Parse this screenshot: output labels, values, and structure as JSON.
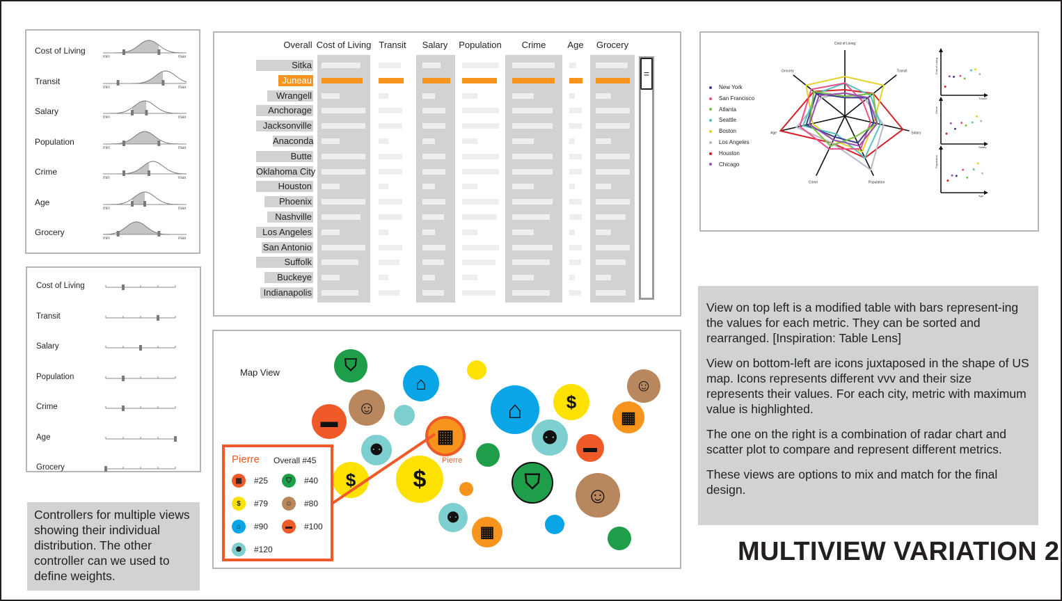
{
  "title": "MULTIVIEW VARIATION 2",
  "distribution_panel": {
    "metrics": [
      "Cost of Living",
      "Transit",
      "Salary",
      "Population",
      "Crime",
      "Age",
      "Grocery"
    ],
    "min_label": "min",
    "max_label": "max"
  },
  "weights_panel": {
    "metrics": [
      "Cost of Living",
      "Transit",
      "Salary",
      "Population",
      "Crime",
      "Age",
      "Grocery"
    ],
    "weights": [
      0.25,
      0.75,
      0.5,
      0.25,
      0.25,
      1.0,
      0.0
    ]
  },
  "controller_note": "Controllers for multiple views showing their individual distribution. The other controller can we used to define weights.",
  "table": {
    "columns": [
      "Overall",
      "Cost of Living",
      "Transit",
      "Salary",
      "Population",
      "Crime",
      "Age",
      "Grocery"
    ],
    "cities": [
      "Sitka",
      "Juneau",
      "Wrangell",
      "Anchorage",
      "Jacksonville",
      "Anaconda",
      "Butte",
      "Oklahoma City",
      "Houston",
      "Phoenix",
      "Nashville",
      "Los Angeles",
      "San Antonio",
      "Suffolk",
      "Buckeye",
      "Indianapolis"
    ],
    "highlighted_city": "Juneau",
    "scroll_handle": "="
  },
  "map": {
    "title": "Map View",
    "city_label": "Pierre",
    "tooltip": {
      "city": "Pierre",
      "overall": "Overall #45",
      "ranks": [
        {
          "icon": "grocery-icon",
          "rank": "#25",
          "color": "#f05a28"
        },
        {
          "icon": "shield-icon",
          "rank": "#40",
          "color": "#1f9e4a"
        },
        {
          "icon": "coins-icon",
          "rank": "#79",
          "color": "#fde100"
        },
        {
          "icon": "elder-icon",
          "rank": "#80",
          "color": "#b9875e"
        },
        {
          "icon": "house-icon",
          "rank": "#90",
          "color": "#0aa5e6"
        },
        {
          "icon": "bus-icon",
          "rank": "#100",
          "color": "#f05a28"
        },
        {
          "icon": "people-icon",
          "rank": "#120",
          "color": "#7ecfcf"
        }
      ]
    },
    "colors": {
      "accent": "#f05a28",
      "crime": "#1f9e4a",
      "salary": "#fde100",
      "age": "#b9875e",
      "cost": "#0aa5e6",
      "transit": "#f05a28",
      "population": "#7ecfcf",
      "grocery": "#f7941d"
    }
  },
  "radar": {
    "axes": [
      "Cost of Living",
      "Transit",
      "Salary",
      "Population",
      "Crime",
      "Age",
      "Grocery"
    ],
    "legend": [
      {
        "name": "New York",
        "color": "#3b3f8f"
      },
      {
        "name": "San Francisco",
        "color": "#e8508a"
      },
      {
        "name": "Atlanta",
        "color": "#7ac143"
      },
      {
        "name": "Seattle",
        "color": "#55c1c1"
      },
      {
        "name": "Boston",
        "color": "#e2d32c"
      },
      {
        "name": "Los Angeles",
        "color": "#b7b7c7"
      },
      {
        "name": "Houston",
        "color": "#d72027"
      },
      {
        "name": "Chicago",
        "color": "#9b4fb3"
      }
    ],
    "scatter_axes": [
      {
        "x": "Transit",
        "y": "Cost of Living"
      },
      {
        "x": "Salary",
        "y": "Crime"
      },
      {
        "x": "Age",
        "y": "Population"
      }
    ]
  },
  "description": [
    "View on top left is a modified table with bars represent-ing the values for each metric. They can be sorted and rearranged. [Inspiration: Table Lens]",
    "View on bottom-left are icons juxtaposed in the shape of US map.  Icons represents different vvv and their size represents their values. For each city, metric with maximum value is highlighted.",
    "The one on the right is a combination of radar chart and scatter plot to compare and represent different metrics.",
    "These views are options to mix and match for the final design."
  ]
}
